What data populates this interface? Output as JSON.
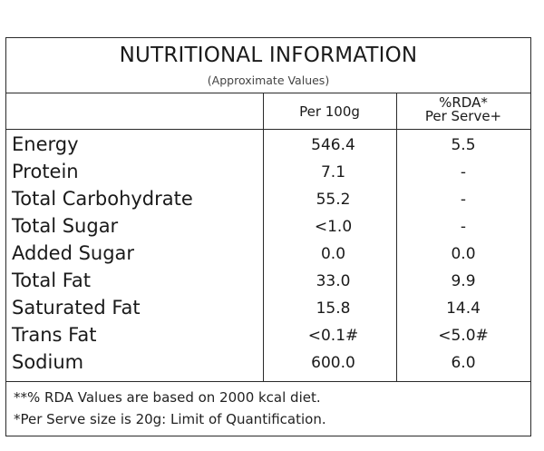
{
  "header": {
    "title": "NUTRITIONAL INFORMATION",
    "subtitle": "(Approximate Values)"
  },
  "columns": {
    "per_100g": "Per 100g",
    "rda_line1": "%RDA*",
    "rda_line2": "Per Serve+"
  },
  "rows": [
    {
      "name": "Energy",
      "per_100g": "546.4",
      "rda": "5.5"
    },
    {
      "name": "Protein",
      "per_100g": "7.1",
      "rda": "-"
    },
    {
      "name": "Total Carbohydrate",
      "per_100g": "55.2",
      "rda": "-"
    },
    {
      "name": "Total Sugar",
      "per_100g": "<1.0",
      "rda": "-"
    },
    {
      "name": "Added Sugar",
      "per_100g": "0.0",
      "rda": "0.0"
    },
    {
      "name": "Total Fat",
      "per_100g": "33.0",
      "rda": "9.9"
    },
    {
      "name": "Saturated Fat",
      "per_100g": "15.8",
      "rda": "14.4"
    },
    {
      "name": "Trans Fat",
      "per_100g": "<0.1#",
      "rda": "<5.0#"
    },
    {
      "name": "Sodium",
      "per_100g": "600.0",
      "rda": "6.0"
    }
  ],
  "footnotes": [
    "**% RDA Values are based on 2000 kcal diet.",
    "*Per Serve size is 20g: Limit of Quantification."
  ]
}
